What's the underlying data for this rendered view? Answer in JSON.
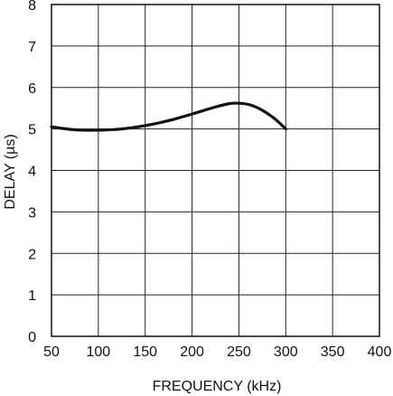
{
  "chart_data": {
    "type": "line",
    "title": "",
    "xlabel": "FREQUENCY (kHz)",
    "ylabel": "DELAY (µs)",
    "xlim": [
      50,
      400
    ],
    "ylim": [
      0,
      8
    ],
    "x_ticks": [
      "50",
      "100",
      "150",
      "200",
      "250",
      "300",
      "350",
      "400"
    ],
    "y_ticks": [
      "0",
      "1",
      "2",
      "3",
      "4",
      "5",
      "6",
      "7",
      "8"
    ],
    "grid": true,
    "legend": "none",
    "series": [
      {
        "x": [
          50,
          75,
          100,
          125,
          150,
          175,
          200,
          225,
          240,
          250,
          262,
          275,
          288,
          300
        ],
        "y": [
          5.05,
          4.98,
          4.97,
          5.0,
          5.08,
          5.2,
          5.36,
          5.53,
          5.61,
          5.62,
          5.58,
          5.45,
          5.25,
          5.0
        ]
      }
    ]
  },
  "colors": {
    "line": "#111111",
    "grid": "#222222",
    "frame": "#111111",
    "background": "#ffffff"
  }
}
